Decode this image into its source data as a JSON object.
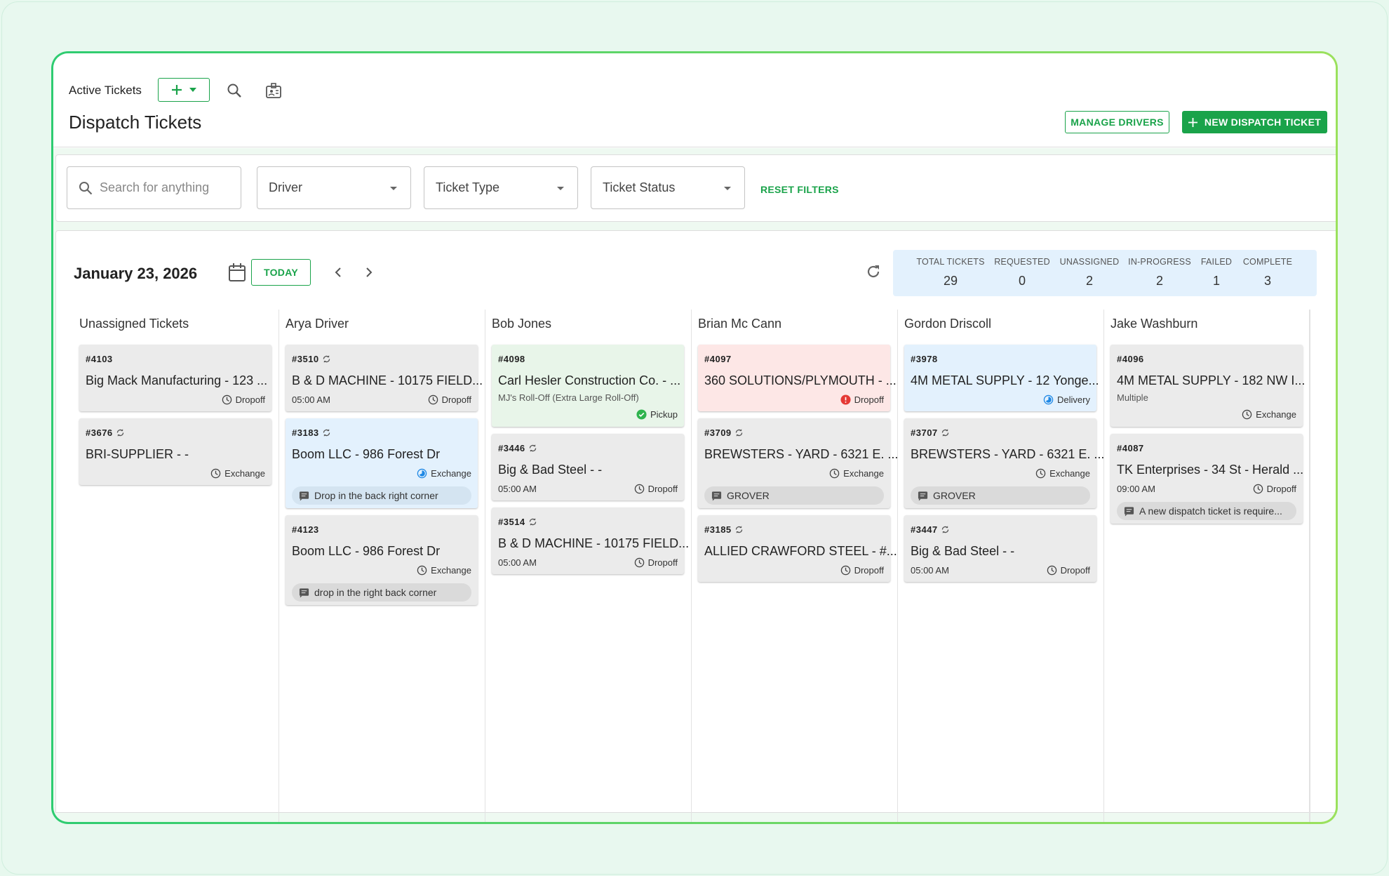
{
  "header": {
    "breadcrumb": "Active Tickets",
    "title": "Dispatch Tickets",
    "buttons": [
      "MANAGE DRIVERS",
      "NEW DISPATCH TICKET"
    ]
  },
  "filters": {
    "search_placeholder": "Search for anything",
    "dropdowns": [
      "Driver",
      "Ticket Type",
      "Ticket Status"
    ],
    "reset": "RESET FILTERS"
  },
  "board": {
    "date": "January 23, 2026",
    "today": "TODAY",
    "stats": [
      {
        "label": "TOTAL TICKETS",
        "value": 29
      },
      {
        "label": "REQUESTED",
        "value": 0
      },
      {
        "label": "UNASSIGNED",
        "value": 2
      },
      {
        "label": "IN-PROGRESS",
        "value": 2
      },
      {
        "label": "FAILED",
        "value": 1
      },
      {
        "label": "COMPLETE",
        "value": 3
      }
    ]
  },
  "columns": [
    {
      "name": "Unassigned Tickets",
      "tickets": [
        {
          "number": "#4103",
          "recurring": false,
          "title": "Big Mack Manufacturing - 123 ...",
          "type": "Dropoff",
          "type_icon": "clock",
          "color": "gray"
        },
        {
          "number": "#3676",
          "recurring": true,
          "title": "BRI-SUPPLIER - -",
          "type": "Exchange",
          "type_icon": "clock",
          "color": "gray"
        }
      ]
    },
    {
      "name": "Arya Driver",
      "tickets": [
        {
          "number": "#3510",
          "recurring": true,
          "title": "B & D MACHINE - 10175 FIELD...",
          "time": "05:00 AM",
          "type": "Dropoff",
          "type_icon": "clock",
          "color": "gray"
        },
        {
          "number": "#3183",
          "recurring": true,
          "title": "Boom LLC - 986 Forest Dr",
          "type": "Exchange",
          "type_icon": "progress",
          "color": "blue",
          "note": "Drop in the back right corner"
        },
        {
          "number": "#4123",
          "recurring": false,
          "title": "Boom LLC - 986 Forest Dr",
          "type": "Exchange",
          "type_icon": "clock",
          "color": "gray",
          "note": "drop in the right back corner"
        }
      ]
    },
    {
      "name": "Bob Jones",
      "tickets": [
        {
          "number": "#4098",
          "recurring": false,
          "title": "Carl Hesler Construction Co. - ...",
          "subtitle": "MJ's Roll-Off (Extra Large Roll-Off)",
          "type": "Pickup",
          "type_icon": "check",
          "color": "green"
        },
        {
          "number": "#3446",
          "recurring": true,
          "title": "Big & Bad Steel - -",
          "time": "05:00 AM",
          "type": "Dropoff",
          "type_icon": "clock",
          "color": "gray"
        },
        {
          "number": "#3514",
          "recurring": true,
          "title": "B & D MACHINE - 10175 FIELD...",
          "time": "05:00 AM",
          "type": "Dropoff",
          "type_icon": "clock",
          "color": "gray"
        }
      ]
    },
    {
      "name": "Brian Mc Cann",
      "tickets": [
        {
          "number": "#4097",
          "recurring": false,
          "title": "360 SOLUTIONS/PLYMOUTH - ...",
          "type": "Dropoff",
          "type_icon": "alert",
          "color": "red"
        },
        {
          "number": "#3709",
          "recurring": true,
          "title": "BREWSTERS - YARD - 6321 E. ...",
          "type": "Exchange",
          "type_icon": "clock",
          "color": "gray",
          "note": "GROVER"
        },
        {
          "number": "#3185",
          "recurring": true,
          "title": "ALLIED CRAWFORD STEEL - #...",
          "type": "Dropoff",
          "type_icon": "clock",
          "color": "gray"
        }
      ]
    },
    {
      "name": "Gordon Driscoll",
      "tickets": [
        {
          "number": "#3978",
          "recurring": false,
          "title": "4M METAL SUPPLY - 12 Yonge...",
          "type": "Delivery",
          "type_icon": "progress",
          "color": "blue"
        },
        {
          "number": "#3707",
          "recurring": true,
          "title": "BREWSTERS - YARD - 6321 E. ...",
          "type": "Exchange",
          "type_icon": "clock",
          "color": "gray",
          "note": "GROVER"
        },
        {
          "number": "#3447",
          "recurring": true,
          "title": "Big & Bad Steel - -",
          "time": "05:00 AM",
          "type": "Dropoff",
          "type_icon": "clock",
          "color": "gray"
        }
      ]
    },
    {
      "name": "Jake Washburn",
      "tickets": [
        {
          "number": "#4096",
          "recurring": false,
          "title": "4M METAL SUPPLY - 182 NW I...",
          "subtitle": "Multiple",
          "type": "Exchange",
          "type_icon": "clock",
          "color": "gray"
        },
        {
          "number": "#4087",
          "recurring": false,
          "title": "TK Enterprises - 34 St - Herald ...",
          "time": "09:00 AM",
          "type": "Dropoff",
          "type_icon": "clock",
          "color": "gray",
          "note": "A new dispatch ticket is require..."
        }
      ]
    }
  ]
}
